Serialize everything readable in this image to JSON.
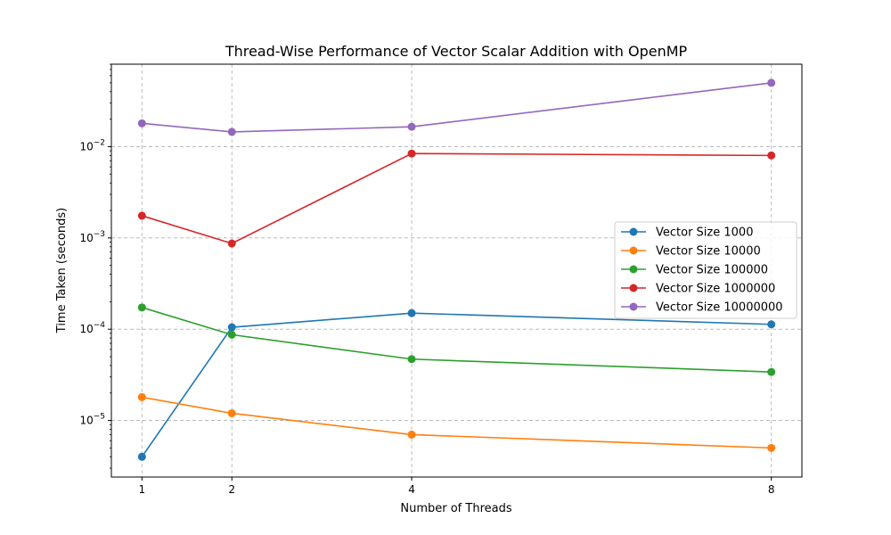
{
  "chart_data": {
    "type": "line",
    "title": "Thread-Wise Performance of Vector Scalar Addition with OpenMP",
    "xlabel": "Number of Threads",
    "ylabel": "Time Taken (seconds)",
    "x": [
      1,
      2,
      4,
      8
    ],
    "xticks": [
      1,
      2,
      4,
      8
    ],
    "xlim": [
      0.66,
      8.34
    ],
    "yscale": "log",
    "ylim": [
      2.4e-06,
      0.08
    ],
    "yticks": [
      {
        "base": "10",
        "exp": "−5",
        "value": 1e-05
      },
      {
        "base": "10",
        "exp": "−4",
        "value": 0.0001
      },
      {
        "base": "10",
        "exp": "−3",
        "value": 0.001
      },
      {
        "base": "10",
        "exp": "−2",
        "value": 0.01
      }
    ],
    "grid": true,
    "legend_position": "center-right",
    "series": [
      {
        "name": "Vector Size 1000",
        "color": "#1f77b4",
        "values": [
          4e-06,
          0.000105,
          0.00015,
          0.000113
        ]
      },
      {
        "name": "Vector Size 10000",
        "color": "#ff7f0e",
        "values": [
          1.8e-05,
          1.2e-05,
          7e-06,
          5e-06
        ]
      },
      {
        "name": "Vector Size 100000",
        "color": "#2ca02c",
        "values": [
          0.000173,
          8.7e-05,
          4.7e-05,
          3.4e-05
        ]
      },
      {
        "name": "Vector Size 1000000",
        "color": "#d62728",
        "values": [
          0.00175,
          0.00087,
          0.0084,
          0.008
        ]
      },
      {
        "name": "Vector Size 10000000",
        "color": "#9467bd",
        "values": [
          0.018,
          0.0145,
          0.0165,
          0.05
        ]
      }
    ]
  }
}
